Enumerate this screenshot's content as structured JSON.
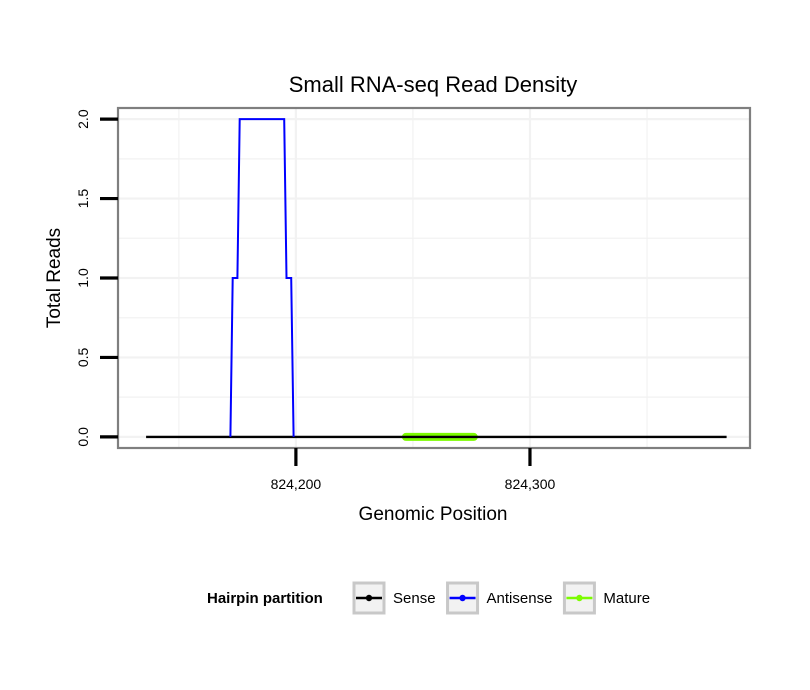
{
  "chart_data": {
    "type": "line",
    "title": "Small RNA-seq Read Density",
    "xlabel": "Genomic Position",
    "ylabel": "Total Reads",
    "xlim": [
      824124,
      824394
    ],
    "ylim": [
      -0.07,
      2.07
    ],
    "x_ticks": [
      824200,
      824300
    ],
    "x_tick_labels": [
      "824,200",
      "824,300"
    ],
    "y_ticks": [
      0,
      0.5,
      1,
      1.5,
      2
    ],
    "y_tick_labels": [
      "0.0",
      "0.5",
      "1.0",
      "1.5",
      "2.0"
    ],
    "grid": true,
    "legend_title": "Hairpin partition",
    "legend_position": "bottom",
    "series": [
      {
        "name": "Sense",
        "color": "#000000",
        "x": [
          824136,
          824384
        ],
        "y": [
          0,
          0
        ]
      },
      {
        "name": "Antisense",
        "color": "#0000ff",
        "x": [
          824172,
          824173,
          824175,
          824176,
          824195,
          824196,
          824198,
          824199
        ],
        "y": [
          0,
          1,
          1,
          2,
          2,
          1,
          1,
          0
        ]
      },
      {
        "name": "Mature",
        "color": "#7cfc00",
        "x": [
          824247,
          824276
        ],
        "y": [
          0,
          0
        ]
      }
    ]
  }
}
